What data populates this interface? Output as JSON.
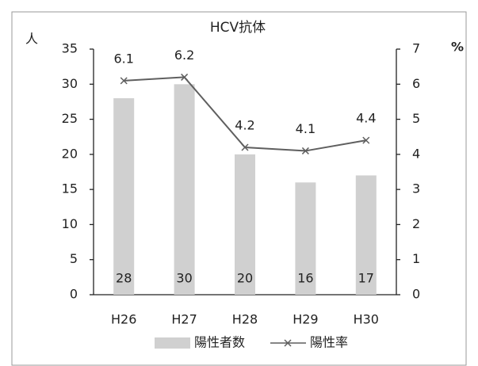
{
  "chart_data": {
    "type": "bar",
    "title": "HCV抗体",
    "y_label": "人",
    "y2_label": "%",
    "categories": [
      "H26",
      "H27",
      "H28",
      "H29",
      "H30"
    ],
    "series": [
      {
        "name": "陽性者数",
        "type": "bar",
        "color": "#d0d0d0",
        "values": [
          28,
          30,
          20,
          16,
          17
        ]
      },
      {
        "name": "陽性率",
        "type": "line",
        "axis": "y2",
        "color": "#5f5f5f",
        "values": [
          6.1,
          6.2,
          4.2,
          4.1,
          4.4
        ]
      }
    ],
    "ylim": [
      0,
      35
    ],
    "yticks": [
      0,
      5,
      10,
      15,
      20,
      25,
      30,
      35
    ],
    "y2lim": [
      0,
      7
    ],
    "y2ticks": [
      0,
      1,
      2,
      3,
      4,
      5,
      6,
      7
    ],
    "legend": "bottom",
    "grid": false
  }
}
